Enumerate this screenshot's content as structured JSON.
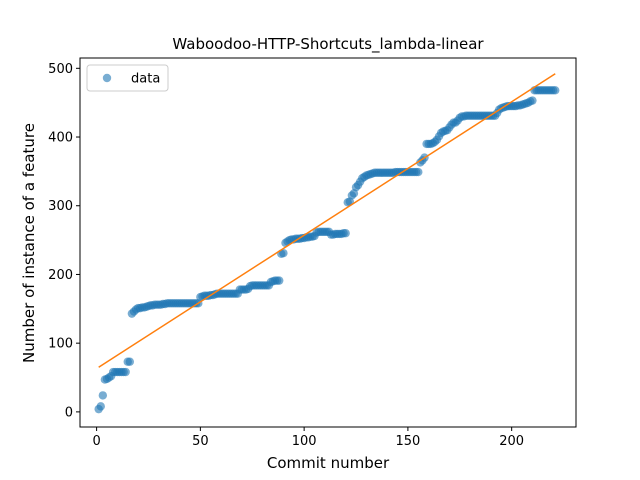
{
  "chart_data": {
    "type": "scatter",
    "title": "Waboodoo-HTTP-Shortcuts_lambda-linear",
    "xlabel": "Commit number",
    "ylabel": "Number of instance of a feature",
    "xlim": [
      -8,
      231
    ],
    "ylim": [
      -22,
      515
    ],
    "x_ticks": [
      0,
      50,
      100,
      150,
      200
    ],
    "y_ticks": [
      0,
      100,
      200,
      300,
      400,
      500
    ],
    "grid": false,
    "legend": {
      "placement": "top-left",
      "entries": [
        "data"
      ]
    },
    "colors": {
      "data": "#1f77b4",
      "fit": "#ff7f0e"
    },
    "series": [
      {
        "name": "data",
        "kind": "scatter",
        "points": [
          [
            1,
            4
          ],
          [
            2,
            8
          ],
          [
            3,
            24
          ],
          [
            4,
            47
          ],
          [
            5,
            48
          ],
          [
            6,
            50
          ],
          [
            7,
            52
          ],
          [
            8,
            58
          ],
          [
            9,
            58
          ],
          [
            10,
            58
          ],
          [
            11,
            58
          ],
          [
            12,
            58
          ],
          [
            13,
            58
          ],
          [
            14,
            58
          ],
          [
            15,
            73
          ],
          [
            16,
            73
          ],
          [
            17,
            143
          ],
          [
            18,
            146
          ],
          [
            19,
            149
          ],
          [
            20,
            151
          ],
          [
            21,
            151
          ],
          [
            22,
            152
          ],
          [
            23,
            152
          ],
          [
            24,
            153
          ],
          [
            25,
            154
          ],
          [
            26,
            155
          ],
          [
            27,
            155
          ],
          [
            28,
            156
          ],
          [
            29,
            156
          ],
          [
            30,
            156
          ],
          [
            31,
            156
          ],
          [
            32,
            157
          ],
          [
            33,
            157
          ],
          [
            34,
            158
          ],
          [
            35,
            158
          ],
          [
            36,
            158
          ],
          [
            37,
            158
          ],
          [
            38,
            158
          ],
          [
            39,
            158
          ],
          [
            40,
            158
          ],
          [
            41,
            158
          ],
          [
            42,
            158
          ],
          [
            43,
            158
          ],
          [
            44,
            158
          ],
          [
            45,
            158
          ],
          [
            46,
            158
          ],
          [
            47,
            158
          ],
          [
            48,
            158
          ],
          [
            49,
            158
          ],
          [
            50,
            167
          ],
          [
            51,
            168
          ],
          [
            52,
            169
          ],
          [
            53,
            169
          ],
          [
            54,
            169
          ],
          [
            55,
            170
          ],
          [
            56,
            170
          ],
          [
            57,
            171
          ],
          [
            58,
            172
          ],
          [
            59,
            172
          ],
          [
            60,
            172
          ],
          [
            61,
            172
          ],
          [
            62,
            172
          ],
          [
            63,
            172
          ],
          [
            64,
            172
          ],
          [
            65,
            172
          ],
          [
            66,
            172
          ],
          [
            67,
            172
          ],
          [
            68,
            172
          ],
          [
            69,
            178
          ],
          [
            70,
            178
          ],
          [
            71,
            178
          ],
          [
            72,
            178
          ],
          [
            73,
            179
          ],
          [
            74,
            183
          ],
          [
            75,
            184
          ],
          [
            76,
            184
          ],
          [
            77,
            184
          ],
          [
            78,
            184
          ],
          [
            79,
            184
          ],
          [
            80,
            184
          ],
          [
            81,
            184
          ],
          [
            82,
            184
          ],
          [
            83,
            184
          ],
          [
            84,
            189
          ],
          [
            85,
            190
          ],
          [
            86,
            191
          ],
          [
            87,
            191
          ],
          [
            88,
            191
          ],
          [
            89,
            230
          ],
          [
            90,
            231
          ],
          [
            91,
            246
          ],
          [
            92,
            248
          ],
          [
            93,
            250
          ],
          [
            94,
            251
          ],
          [
            95,
            251
          ],
          [
            96,
            252
          ],
          [
            97,
            252
          ],
          [
            98,
            252
          ],
          [
            99,
            253
          ],
          [
            100,
            253
          ],
          [
            101,
            254
          ],
          [
            102,
            254
          ],
          [
            103,
            255
          ],
          [
            104,
            255
          ],
          [
            105,
            256
          ],
          [
            106,
            261
          ],
          [
            107,
            262
          ],
          [
            108,
            262
          ],
          [
            109,
            262
          ],
          [
            110,
            262
          ],
          [
            111,
            262
          ],
          [
            112,
            262
          ],
          [
            113,
            258
          ],
          [
            114,
            258
          ],
          [
            115,
            259
          ],
          [
            116,
            259
          ],
          [
            117,
            259
          ],
          [
            118,
            259
          ],
          [
            119,
            260
          ],
          [
            120,
            260
          ],
          [
            121,
            305
          ],
          [
            122,
            306
          ],
          [
            123,
            315
          ],
          [
            124,
            318
          ],
          [
            125,
            327
          ],
          [
            126,
            330
          ],
          [
            127,
            335
          ],
          [
            128,
            340
          ],
          [
            129,
            342
          ],
          [
            130,
            344
          ],
          [
            131,
            345
          ],
          [
            132,
            346
          ],
          [
            133,
            347
          ],
          [
            134,
            348
          ],
          [
            135,
            348
          ],
          [
            136,
            348
          ],
          [
            137,
            348
          ],
          [
            138,
            348
          ],
          [
            139,
            348
          ],
          [
            140,
            348
          ],
          [
            141,
            348
          ],
          [
            142,
            348
          ],
          [
            143,
            348
          ],
          [
            144,
            349
          ],
          [
            145,
            349
          ],
          [
            146,
            349
          ],
          [
            147,
            349
          ],
          [
            148,
            349
          ],
          [
            149,
            349
          ],
          [
            150,
            349
          ],
          [
            151,
            349
          ],
          [
            152,
            349
          ],
          [
            153,
            349
          ],
          [
            154,
            349
          ],
          [
            155,
            349
          ],
          [
            156,
            363
          ],
          [
            157,
            366
          ],
          [
            158,
            370
          ],
          [
            159,
            390
          ],
          [
            160,
            390
          ],
          [
            161,
            390
          ],
          [
            162,
            391
          ],
          [
            163,
            393
          ],
          [
            164,
            396
          ],
          [
            165,
            401
          ],
          [
            166,
            406
          ],
          [
            167,
            408
          ],
          [
            168,
            409
          ],
          [
            169,
            410
          ],
          [
            170,
            414
          ],
          [
            171,
            418
          ],
          [
            172,
            421
          ],
          [
            173,
            421
          ],
          [
            174,
            424
          ],
          [
            175,
            428
          ],
          [
            176,
            430
          ],
          [
            177,
            430
          ],
          [
            178,
            431
          ],
          [
            179,
            431
          ],
          [
            180,
            431
          ],
          [
            181,
            431
          ],
          [
            182,
            431
          ],
          [
            183,
            431
          ],
          [
            184,
            431
          ],
          [
            185,
            431
          ],
          [
            186,
            431
          ],
          [
            187,
            431
          ],
          [
            188,
            431
          ],
          [
            189,
            431
          ],
          [
            190,
            431
          ],
          [
            191,
            431
          ],
          [
            192,
            431
          ],
          [
            193,
            435
          ],
          [
            194,
            440
          ],
          [
            195,
            442
          ],
          [
            196,
            443
          ],
          [
            197,
            444
          ],
          [
            198,
            445
          ],
          [
            199,
            445
          ],
          [
            200,
            445
          ],
          [
            201,
            445
          ],
          [
            202,
            445
          ],
          [
            203,
            446
          ],
          [
            204,
            446
          ],
          [
            205,
            447
          ],
          [
            206,
            448
          ],
          [
            207,
            449
          ],
          [
            208,
            450
          ],
          [
            209,
            452
          ],
          [
            210,
            453
          ],
          [
            211,
            468
          ],
          [
            212,
            468
          ],
          [
            213,
            468
          ],
          [
            214,
            468
          ],
          [
            215,
            468
          ],
          [
            216,
            468
          ],
          [
            217,
            468
          ],
          [
            218,
            468
          ],
          [
            219,
            468
          ],
          [
            220,
            468
          ],
          [
            221,
            468
          ]
        ]
      },
      {
        "kind": "line",
        "x": [
          1,
          221
        ],
        "y": [
          65,
          492
        ]
      }
    ]
  }
}
